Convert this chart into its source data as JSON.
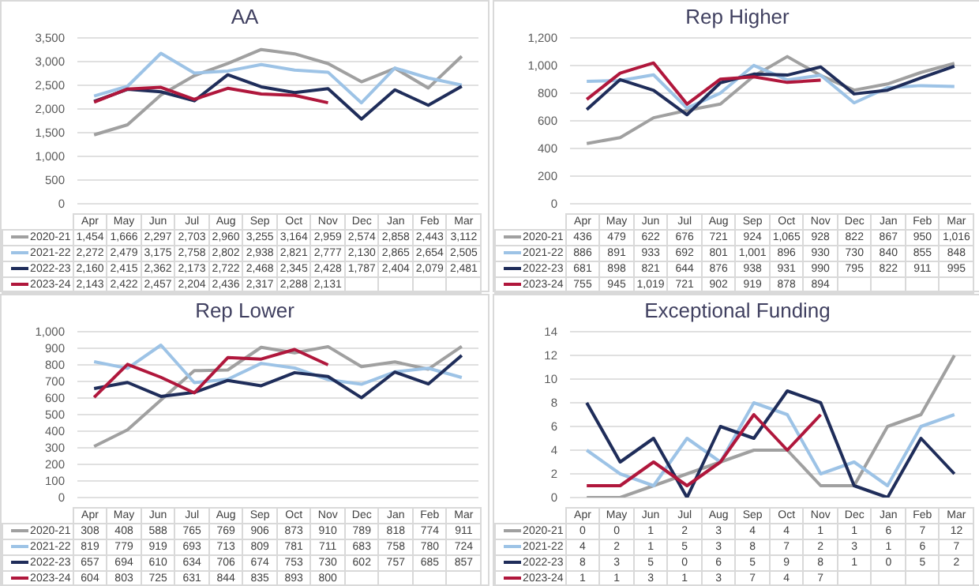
{
  "chart_data": [
    {
      "type": "line",
      "title": "AA",
      "categories": [
        "Apr",
        "May",
        "Jun",
        "Jul",
        "Aug",
        "Sep",
        "Oct",
        "Nov",
        "Dec",
        "Jan",
        "Feb",
        "Mar"
      ],
      "ylim": [
        0,
        3500
      ],
      "yticks": [
        0,
        500,
        {
          "value": 1000,
          "label": "1,000"
        },
        {
          "value": 1500,
          "label": "1,500"
        },
        {
          "value": 2000,
          "label": "2,000"
        },
        {
          "value": 2500,
          "label": "2,500"
        },
        {
          "value": 3000,
          "label": "3,000"
        },
        {
          "value": 3500,
          "label": "3,500"
        }
      ],
      "grid": "y",
      "legend": "bottom",
      "series": [
        {
          "name": "2020-21",
          "color": "#a0a0a0",
          "values": [
            1454,
            1666,
            2297,
            2703,
            2960,
            3255,
            3164,
            2959,
            2574,
            2858,
            2443,
            3112
          ],
          "value_labels": [
            "1,454",
            "1,666",
            "2,297",
            "2,703",
            "2,960",
            "3,255",
            "3,164",
            "2,959",
            "2,574",
            "2,858",
            "2,443",
            "3,112"
          ]
        },
        {
          "name": "2021-22",
          "color": "#9dc3e6",
          "values": [
            2272,
            2479,
            3175,
            2758,
            2802,
            2938,
            2821,
            2777,
            2130,
            2865,
            2654,
            2505
          ],
          "value_labels": [
            "2,272",
            "2,479",
            "3,175",
            "2,758",
            "2,802",
            "2,938",
            "2,821",
            "2,777",
            "2,130",
            "2,865",
            "2,654",
            "2,505"
          ]
        },
        {
          "name": "2022-23",
          "color": "#1f2d5a",
          "values": [
            2160,
            2415,
            2362,
            2173,
            2722,
            2468,
            2345,
            2428,
            1787,
            2404,
            2079,
            2481
          ],
          "value_labels": [
            "2,160",
            "2,415",
            "2,362",
            "2,173",
            "2,722",
            "2,468",
            "2,345",
            "2,428",
            "1,787",
            "2,404",
            "2,079",
            "2,481"
          ]
        },
        {
          "name": "2023-24",
          "color": "#b0173c",
          "values": [
            2143,
            2422,
            2457,
            2204,
            2436,
            2317,
            2288,
            2131,
            null,
            null,
            null,
            null
          ],
          "value_labels": [
            "2,143",
            "2,422",
            "2,457",
            "2,204",
            "2,436",
            "2,317",
            "2,288",
            "2,131",
            null,
            null,
            null,
            null
          ]
        }
      ]
    },
    {
      "type": "line",
      "title": "Rep Higher",
      "categories": [
        "Apr",
        "May",
        "Jun",
        "Jul",
        "Aug",
        "Sep",
        "Oct",
        "Nov",
        "Dec",
        "Jan",
        "Feb",
        "Mar"
      ],
      "ylim": [
        0,
        1200
      ],
      "yticks": [
        0,
        200,
        400,
        600,
        800,
        {
          "value": 1000,
          "label": "1,000"
        },
        {
          "value": 1200,
          "label": "1,200"
        }
      ],
      "grid": "y",
      "legend": "bottom",
      "series": [
        {
          "name": "2020-21",
          "color": "#a0a0a0",
          "values": [
            436,
            479,
            622,
            676,
            721,
            924,
            1065,
            928,
            822,
            867,
            950,
            1016
          ],
          "value_labels": [
            "436",
            "479",
            "622",
            "676",
            "721",
            "924",
            "1,065",
            "928",
            "822",
            "867",
            "950",
            "1,016"
          ]
        },
        {
          "name": "2021-22",
          "color": "#9dc3e6",
          "values": [
            886,
            891,
            933,
            692,
            801,
            1001,
            896,
            930,
            730,
            840,
            855,
            848
          ],
          "value_labels": [
            "886",
            "891",
            "933",
            "692",
            "801",
            "1,001",
            "896",
            "930",
            "730",
            "840",
            "855",
            "848"
          ]
        },
        {
          "name": "2022-23",
          "color": "#1f2d5a",
          "values": [
            681,
            898,
            821,
            644,
            876,
            938,
            931,
            990,
            795,
            822,
            911,
            995
          ],
          "value_labels": [
            "681",
            "898",
            "821",
            "644",
            "876",
            "938",
            "931",
            "990",
            "795",
            "822",
            "911",
            "995"
          ]
        },
        {
          "name": "2023-24",
          "color": "#b0173c",
          "values": [
            755,
            945,
            1019,
            721,
            902,
            919,
            878,
            894,
            null,
            null,
            null,
            null
          ],
          "value_labels": [
            "755",
            "945",
            "1,019",
            "721",
            "902",
            "919",
            "878",
            "894",
            null,
            null,
            null,
            null
          ]
        }
      ]
    },
    {
      "type": "line",
      "title": "Rep Lower",
      "categories": [
        "Apr",
        "May",
        "Jun",
        "Jul",
        "Aug",
        "Sep",
        "Oct",
        "Nov",
        "Dec",
        "Jan",
        "Feb",
        "Mar"
      ],
      "ylim": [
        0,
        1000
      ],
      "yticks": [
        0,
        100,
        200,
        300,
        400,
        500,
        600,
        700,
        800,
        900,
        {
          "value": 1000,
          "label": "1,000"
        }
      ],
      "grid": "y",
      "legend": "bottom",
      "series": [
        {
          "name": "2020-21",
          "color": "#a0a0a0",
          "values": [
            308,
            408,
            588,
            765,
            769,
            906,
            873,
            910,
            789,
            818,
            774,
            911
          ],
          "value_labels": [
            "308",
            "408",
            "588",
            "765",
            "769",
            "906",
            "873",
            "910",
            "789",
            "818",
            "774",
            "911"
          ]
        },
        {
          "name": "2021-22",
          "color": "#9dc3e6",
          "values": [
            819,
            779,
            919,
            693,
            713,
            809,
            781,
            711,
            683,
            758,
            780,
            724
          ],
          "value_labels": [
            "819",
            "779",
            "919",
            "693",
            "713",
            "809",
            "781",
            "711",
            "683",
            "758",
            "780",
            "724"
          ]
        },
        {
          "name": "2022-23",
          "color": "#1f2d5a",
          "values": [
            657,
            694,
            610,
            634,
            706,
            674,
            753,
            730,
            602,
            757,
            685,
            857
          ],
          "value_labels": [
            "657",
            "694",
            "610",
            "634",
            "706",
            "674",
            "753",
            "730",
            "602",
            "757",
            "685",
            "857"
          ]
        },
        {
          "name": "2023-24",
          "color": "#b0173c",
          "values": [
            604,
            803,
            725,
            631,
            844,
            835,
            893,
            800,
            null,
            null,
            null,
            null
          ],
          "value_labels": [
            "604",
            "803",
            "725",
            "631",
            "844",
            "835",
            "893",
            "800",
            null,
            null,
            null,
            null
          ]
        }
      ]
    },
    {
      "type": "line",
      "title": "Exceptional Funding",
      "categories": [
        "Apr",
        "May",
        "Jun",
        "Jul",
        "Aug",
        "Sep",
        "Oct",
        "Nov",
        "Dec",
        "Jan",
        "Feb",
        "Mar"
      ],
      "ylim": [
        0,
        14
      ],
      "yticks": [
        0,
        2,
        4,
        6,
        8,
        10,
        12,
        14
      ],
      "grid": "y",
      "legend": "bottom",
      "series": [
        {
          "name": "2020-21",
          "color": "#a0a0a0",
          "values": [
            0,
            0,
            1,
            2,
            3,
            4,
            4,
            1,
            1,
            6,
            7,
            12
          ],
          "value_labels": [
            "0",
            "0",
            "1",
            "2",
            "3",
            "4",
            "4",
            "1",
            "1",
            "6",
            "7",
            "12"
          ]
        },
        {
          "name": "2021-22",
          "color": "#9dc3e6",
          "values": [
            4,
            2,
            1,
            5,
            3,
            8,
            7,
            2,
            3,
            1,
            6,
            7
          ],
          "value_labels": [
            "4",
            "2",
            "1",
            "5",
            "3",
            "8",
            "7",
            "2",
            "3",
            "1",
            "6",
            "7"
          ]
        },
        {
          "name": "2022-23",
          "color": "#1f2d5a",
          "values": [
            8,
            3,
            5,
            0,
            6,
            5,
            9,
            8,
            1,
            0,
            5,
            2
          ],
          "value_labels": [
            "8",
            "3",
            "5",
            "0",
            "6",
            "5",
            "9",
            "8",
            "1",
            "0",
            "5",
            "2"
          ]
        },
        {
          "name": "2023-24",
          "color": "#b0173c",
          "values": [
            1,
            1,
            3,
            1,
            3,
            7,
            4,
            7,
            null,
            null,
            null,
            null
          ],
          "value_labels": [
            "1",
            "1",
            "3",
            "1",
            "3",
            "7",
            "4",
            "7",
            null,
            null,
            null,
            null
          ]
        }
      ]
    }
  ]
}
